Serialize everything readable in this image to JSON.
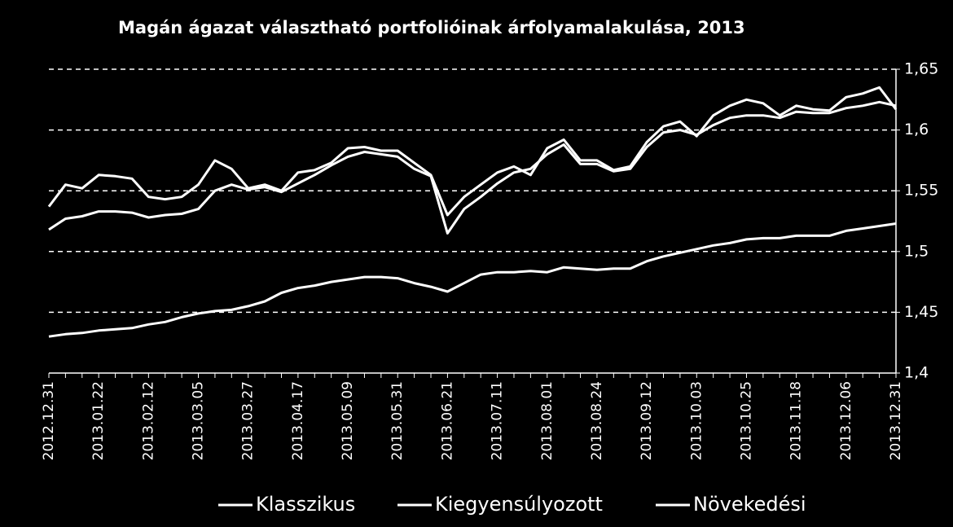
{
  "chart_data": {
    "type": "line",
    "title": "Magán ágazat választható portfolióinak árfolyamalakulása, 2013",
    "categories": [
      "2012.12.31",
      null,
      null,
      "2013.01.22",
      null,
      null,
      "2013.02.12",
      null,
      null,
      "2013.03.05",
      null,
      null,
      "2013.03.27",
      null,
      null,
      "2013.04.17",
      null,
      null,
      "2013.05.09",
      null,
      null,
      "2013.05.31",
      null,
      null,
      "2013.06.21",
      null,
      null,
      "2013.07.11",
      null,
      null,
      "2013.08.01",
      null,
      null,
      "2013.08.24",
      null,
      null,
      "2013.09.12",
      null,
      null,
      "2013.10.03",
      null,
      null,
      "2013.10.25",
      null,
      null,
      "2013.11.18",
      null,
      null,
      "2013.12.06",
      null,
      null,
      "2013.12.31"
    ],
    "series": [
      {
        "name": "Klasszikus",
        "color": "#ffffff",
        "values": [
          1.43,
          1.432,
          1.433,
          1.435,
          1.436,
          1.437,
          1.44,
          1.442,
          1.446,
          1.449,
          1.451,
          1.452,
          1.455,
          1.459,
          1.466,
          1.47,
          1.472,
          1.475,
          1.477,
          1.479,
          1.479,
          1.478,
          1.474,
          1.471,
          1.467,
          1.474,
          1.481,
          1.483,
          1.483,
          1.484,
          1.483,
          1.487,
          1.486,
          1.485,
          1.486,
          1.486,
          1.492,
          1.496,
          1.499,
          1.502,
          1.505,
          1.507,
          1.51,
          1.511,
          1.511,
          1.513,
          1.513,
          1.513,
          1.517,
          1.519,
          1.521,
          1.523
        ]
      },
      {
        "name": "Kiegyensúlyozott",
        "color": "#ffffff",
        "values": [
          1.518,
          1.527,
          1.529,
          1.533,
          1.533,
          1.532,
          1.528,
          1.53,
          1.531,
          1.535,
          1.55,
          1.555,
          1.551,
          1.553,
          1.549,
          1.556,
          1.563,
          1.571,
          1.578,
          1.582,
          1.58,
          1.578,
          1.568,
          1.562,
          1.515,
          1.535,
          1.545,
          1.556,
          1.565,
          1.568,
          1.58,
          1.588,
          1.572,
          1.572,
          1.566,
          1.568,
          1.586,
          1.598,
          1.6,
          1.596,
          1.604,
          1.61,
          1.612,
          1.612,
          1.61,
          1.615,
          1.614,
          1.614,
          1.618,
          1.62,
          1.623,
          1.62
        ]
      },
      {
        "name": "Növekedési",
        "color": "#ffffff",
        "values": [
          1.537,
          1.555,
          1.552,
          1.563,
          1.562,
          1.56,
          1.545,
          1.543,
          1.545,
          1.555,
          1.575,
          1.568,
          1.552,
          1.555,
          1.55,
          1.565,
          1.567,
          1.573,
          1.585,
          1.586,
          1.583,
          1.583,
          1.573,
          1.563,
          1.53,
          1.545,
          1.555,
          1.565,
          1.57,
          1.563,
          1.585,
          1.592,
          1.575,
          1.575,
          1.567,
          1.57,
          1.59,
          1.603,
          1.607,
          1.595,
          1.612,
          1.62,
          1.625,
          1.622,
          1.612,
          1.62,
          1.617,
          1.616,
          1.627,
          1.63,
          1.635,
          1.617
        ]
      }
    ],
    "ylim": [
      1.4,
      1.65
    ],
    "yticks": [
      {
        "value": 1.4,
        "label": "1,4"
      },
      {
        "value": 1.45,
        "label": "1,45"
      },
      {
        "value": 1.5,
        "label": "1,5"
      },
      {
        "value": 1.55,
        "label": "1,55"
      },
      {
        "value": 1.6,
        "label": "1,6"
      },
      {
        "value": 1.65,
        "label": "1,65"
      }
    ],
    "grid": true,
    "legend": "bottom"
  }
}
